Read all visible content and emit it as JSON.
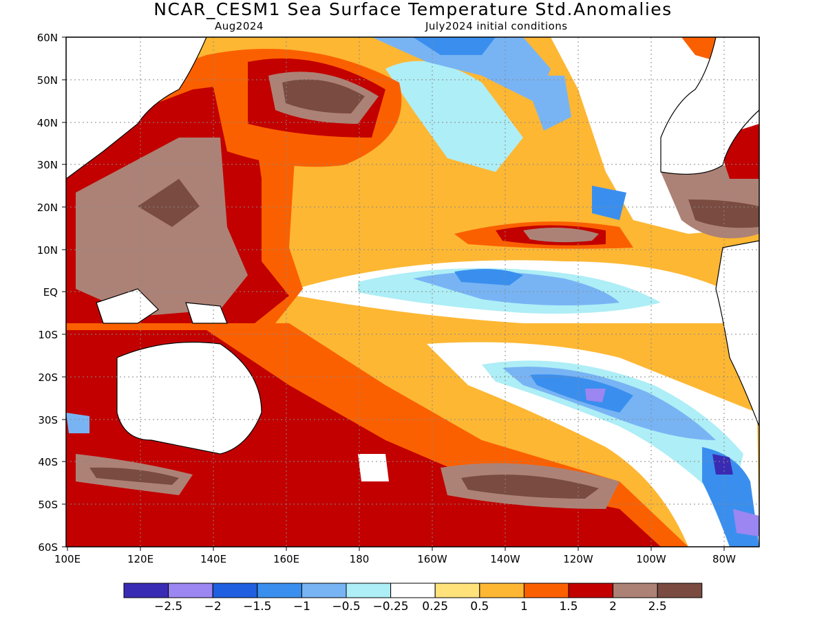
{
  "header": {
    "title": "NCAR_CESM1 Sea Surface Temperature Std.Anomalies",
    "valid_month": "Aug2024",
    "init": "July2024 initial conditions"
  },
  "axes": {
    "lat_labels": [
      "60N",
      "50N",
      "40N",
      "30N",
      "20N",
      "10N",
      "EQ",
      "10S",
      "20S",
      "30S",
      "40S",
      "50S",
      "60S"
    ],
    "lon_labels": [
      "100E",
      "120E",
      "140E",
      "160E",
      "180",
      "160W",
      "140W",
      "120W",
      "100W",
      "80W"
    ],
    "lat_range": [
      -60,
      60
    ],
    "lon_range": [
      100,
      290
    ]
  },
  "colorbar": {
    "labels": [
      "−2.5",
      "−2",
      "−1.5",
      "−1",
      "−0.5",
      "−0.25",
      "0.25",
      "0.5",
      "1",
      "1.5",
      "2",
      "2.5"
    ],
    "colors": [
      "#3a2bb4",
      "#9b86f2",
      "#1f5fe0",
      "#3a8fee",
      "#78b4f4",
      "#aeeef6",
      "#ffffff",
      "#ffe27a",
      "#fdb733",
      "#fb6000",
      "#c20000",
      "#ad8276",
      "#7a4b40"
    ]
  }
}
